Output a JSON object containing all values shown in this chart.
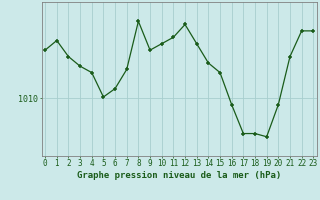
{
  "hours": [
    0,
    1,
    2,
    3,
    4,
    5,
    6,
    7,
    8,
    9,
    10,
    11,
    12,
    13,
    14,
    15,
    16,
    17,
    18,
    19,
    20,
    21,
    22,
    23
  ],
  "pressure": [
    1017.5,
    1019.0,
    1016.5,
    1015.0,
    1014.0,
    1010.2,
    1011.5,
    1014.5,
    1022.0,
    1017.5,
    1018.5,
    1019.5,
    1021.5,
    1018.5,
    1015.5,
    1014.0,
    1009.0,
    1004.5,
    1004.5,
    1004.0,
    1009.0,
    1016.5,
    1020.5,
    1020.5
  ],
  "ytick_label": "1010",
  "ytick_value": 1010,
  "xlabel": "Graphe pression niveau de la mer (hPa)",
  "bg_color": "#cce9e9",
  "line_color": "#1a5c1a",
  "marker_color": "#1a5c1a",
  "grid_color": "#a8cece",
  "axis_color": "#808080",
  "label_color": "#1a5c1a",
  "xfont_size": 5.5,
  "yfont_size": 6.0,
  "xlabel_font_size": 6.5,
  "ylim_min": 1001,
  "ylim_max": 1025
}
